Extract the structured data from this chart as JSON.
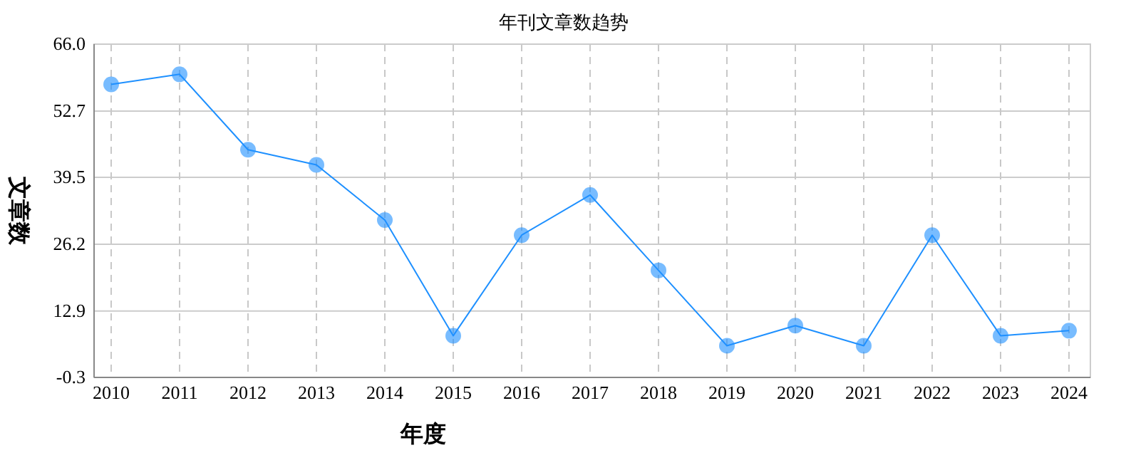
{
  "chart_data": {
    "type": "line",
    "title": "年刊文章数趋势",
    "xlabel": "年度",
    "ylabel": "文章数",
    "categories": [
      "2010",
      "2011",
      "2012",
      "2013",
      "2014",
      "2015",
      "2016",
      "2017",
      "2018",
      "2019",
      "2020",
      "2021",
      "2022",
      "2023",
      "2024"
    ],
    "series": [
      {
        "color": "#1e90ff",
        "values": [
          58,
          60,
          45,
          42,
          31,
          8,
          28,
          36,
          21,
          6,
          10,
          6,
          28,
          8,
          9
        ]
      }
    ],
    "ylim": [
      -0.3,
      66
    ],
    "yticks": [
      {
        "value": -0.3,
        "label": "-0.3"
      },
      {
        "value": 12.9,
        "label": "12.9"
      },
      {
        "value": 26.2,
        "label": "26.2"
      },
      {
        "value": 39.5,
        "label": "39.5"
      },
      {
        "value": 52.7,
        "label": "52.7"
      },
      {
        "value": 66,
        "label": "66.0"
      }
    ],
    "grid": true,
    "marker": "circle",
    "line_style": "solid"
  }
}
